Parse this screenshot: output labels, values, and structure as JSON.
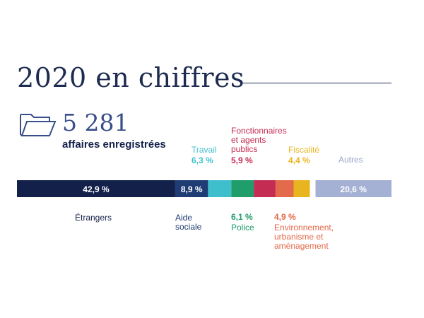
{
  "heading": {
    "title": "2020 en chiffres",
    "count": "5 281",
    "count_label": "affaires enregistrées"
  },
  "colors": {
    "navy": "#13204a",
    "accent": "#3a4f8a"
  },
  "chart_data": {
    "type": "bar",
    "orientation": "horizontal-stacked",
    "title": "2020 en chiffres",
    "total_label": "5 281 affaires enregistrées",
    "unit": "%",
    "segments": [
      {
        "name": "Étrangers",
        "value": 42.9,
        "label": "42,9 %",
        "color": "#13204a"
      },
      {
        "name": "Aide sociale",
        "value": 8.9,
        "label": "8,9 %",
        "color": "#1f3c74"
      },
      {
        "name": "Travail",
        "value": 6.3,
        "label": "6,3 %",
        "color": "#3fbfcc"
      },
      {
        "name": "Police",
        "value": 6.1,
        "label": "6,1 %",
        "color": "#1f9d6b"
      },
      {
        "name": "Fonctionnaires et agents publics",
        "value": 5.9,
        "label": "5,9 %",
        "color": "#c52c54"
      },
      {
        "name": "Environnement, urbanisme et aménagement",
        "value": 4.9,
        "label": "4,9 %",
        "color": "#e36a4a"
      },
      {
        "name": "Fiscalité",
        "value": 4.4,
        "label": "4,4 %",
        "color": "#e8b520"
      },
      {
        "name": "Autres",
        "value": 20.6,
        "label": "20,6 %",
        "color": "#a4b1d4"
      }
    ]
  }
}
